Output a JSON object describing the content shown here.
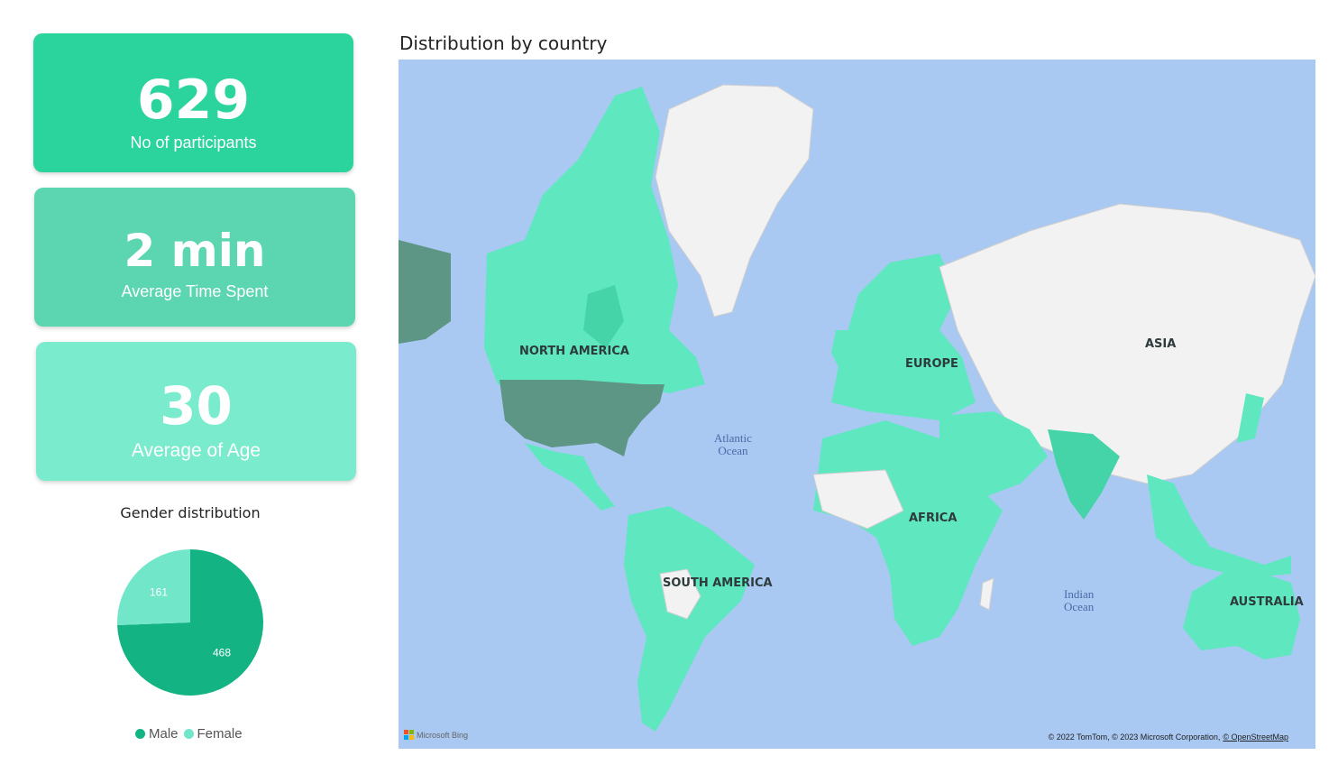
{
  "kpi_cards": {
    "participants": {
      "value": "629",
      "label": "No of participants"
    },
    "time_spent": {
      "value": "2 min",
      "label": "Average Time Spent"
    },
    "age": {
      "value": "30",
      "label": "Average of Age"
    }
  },
  "gender_chart": {
    "title": "Gender distribution",
    "legend": [
      {
        "name": "Male",
        "color": "#13b384"
      },
      {
        "name": "Female",
        "color": "#72e6c8"
      }
    ]
  },
  "chart_data": {
    "type": "pie",
    "title": "Gender distribution",
    "categories": [
      "Male",
      "Female"
    ],
    "values": [
      468,
      161
    ],
    "colors": [
      "#13b384",
      "#72e6c8"
    ],
    "legend_position": "bottom"
  },
  "map": {
    "title": "Distribution by country",
    "continent_labels": [
      "NORTH AMERICA",
      "EUROPE",
      "ASIA",
      "AFRICA",
      "SOUTH AMERICA",
      "AUSTRALIA"
    ],
    "ocean_labels": [
      "Atlantic\nOcean",
      "Indian\nOcean"
    ],
    "logo_text": "Microsoft Bing",
    "attribution": "© 2022 TomTom, © 2023 Microsoft Corporation,",
    "attribution_link": "© OpenStreetMap",
    "colors": {
      "ocean": "#a9c8f2",
      "land": "#f2f2f2",
      "highlight": "#5fe8c0",
      "dark_highlight": "#5d9684",
      "mid_highlight": "#45d4a8"
    }
  }
}
